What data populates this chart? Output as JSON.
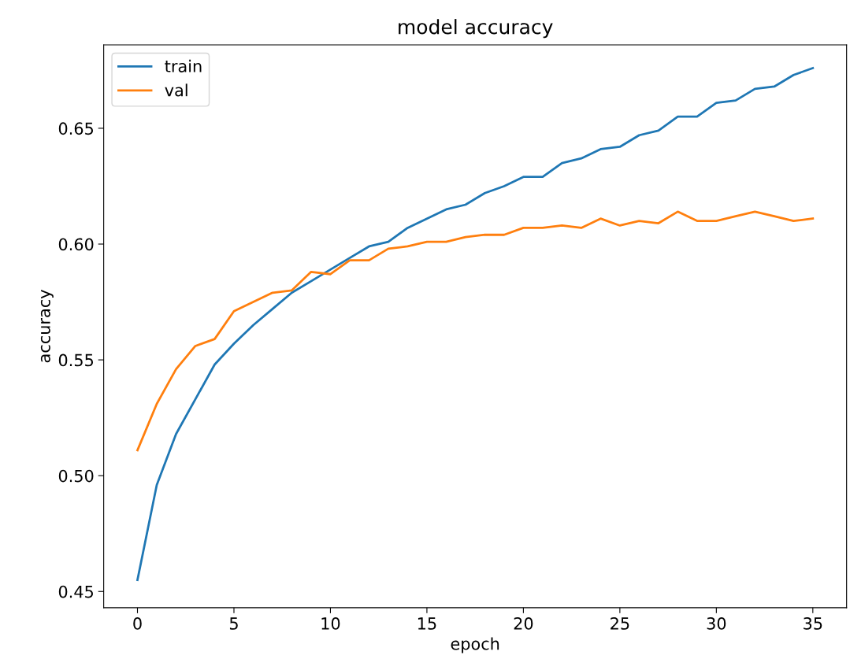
{
  "chart_data": {
    "type": "line",
    "title": "model accuracy",
    "xlabel": "epoch",
    "ylabel": "accuracy",
    "x": [
      0,
      1,
      2,
      3,
      4,
      5,
      6,
      7,
      8,
      9,
      10,
      11,
      12,
      13,
      14,
      15,
      16,
      17,
      18,
      19,
      20,
      21,
      22,
      23,
      24,
      25,
      26,
      27,
      28,
      29,
      30,
      31,
      32,
      33,
      34,
      35
    ],
    "series": [
      {
        "name": "train",
        "color": "#1f77b4",
        "values": [
          0.455,
          0.496,
          0.518,
          0.533,
          0.548,
          0.557,
          0.565,
          0.572,
          0.579,
          0.584,
          0.589,
          0.594,
          0.599,
          0.601,
          0.607,
          0.611,
          0.615,
          0.617,
          0.622,
          0.625,
          0.629,
          0.629,
          0.635,
          0.637,
          0.641,
          0.642,
          0.647,
          0.649,
          0.655,
          0.655,
          0.661,
          0.662,
          0.667,
          0.668,
          0.673,
          0.676
        ]
      },
      {
        "name": "val",
        "color": "#ff7f0e",
        "values": [
          0.511,
          0.531,
          0.546,
          0.556,
          0.559,
          0.571,
          0.575,
          0.579,
          0.58,
          0.588,
          0.587,
          0.593,
          0.593,
          0.598,
          0.599,
          0.601,
          0.601,
          0.603,
          0.604,
          0.604,
          0.607,
          0.607,
          0.608,
          0.607,
          0.611,
          0.608,
          0.61,
          0.609,
          0.614,
          0.61,
          0.61,
          0.612,
          0.614,
          0.612,
          0.61,
          0.611
        ]
      }
    ],
    "xlim": [
      -1.75,
      36.75
    ],
    "ylim": [
      0.443,
      0.686
    ],
    "xticks": [
      0,
      5,
      10,
      15,
      20,
      25,
      30,
      35
    ],
    "yticks": [
      {
        "value": 0.45,
        "label": "0.45"
      },
      {
        "value": 0.5,
        "label": "0.50"
      },
      {
        "value": 0.55,
        "label": "0.55"
      },
      {
        "value": 0.6,
        "label": "0.60"
      },
      {
        "value": 0.65,
        "label": "0.65"
      }
    ],
    "legend": "upper left",
    "grid": false,
    "line_style": "solid"
  }
}
